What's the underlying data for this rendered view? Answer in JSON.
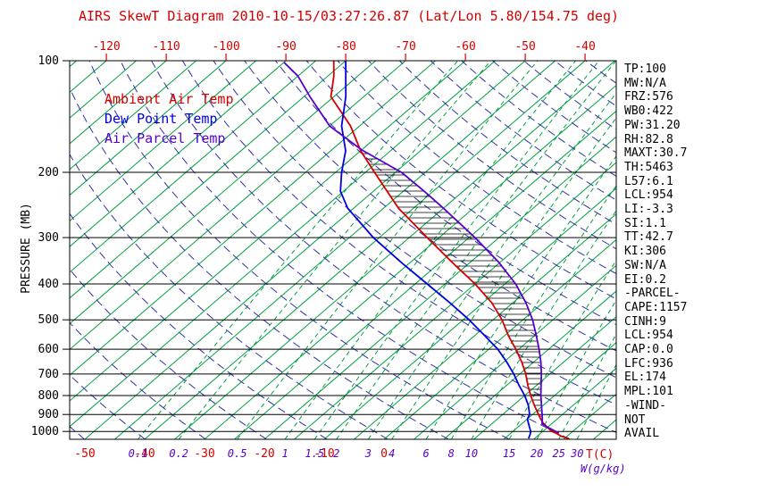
{
  "title": "AIRS SkewT Diagram 2010-10-15/03:27:26.87 (Lat/Lon 5.80/154.75 deg)",
  "legend": {
    "ambient": "Ambient Air Temp",
    "dew": "Dew Point Temp",
    "parcel": "Air Parcel Temp"
  },
  "axes": {
    "pressure_label": "PRESSURE (MB)",
    "pressure_ticks": [
      "100",
      "200",
      "300",
      "400",
      "500",
      "600",
      "700",
      "800",
      "900",
      "1000"
    ],
    "top_temp_ticks": [
      -120,
      -110,
      -100,
      -90,
      -80,
      -70,
      -60,
      -50,
      -40
    ],
    "bottom_temp_ticks": [
      -50,
      -40,
      -30,
      -20,
      -10,
      0
    ],
    "mixing_ratio_labels": [
      0.1,
      0.2,
      0.5,
      1,
      1.5,
      2,
      3,
      4,
      6,
      8,
      10,
      15,
      20,
      25,
      30
    ],
    "temp_unit": "T(C)",
    "mixing_unit": "W(g/kg)"
  },
  "stats_panel": {
    "lines": [
      "TP:100",
      "MW:N/A",
      "FRZ:576",
      "WB0:422",
      "PW:31.20",
      "RH:82.8",
      "MAXT:30.7",
      "TH:5463",
      "L57:6.1",
      "LCL:954",
      "LI:-3.3",
      "SI:1.1",
      "TT:42.7",
      "KI:306",
      "SW:N/A",
      "EI:0.2",
      "-PARCEL-",
      "CAPE:1157",
      "CINH:9",
      "LCL:954",
      "CAP:0.0",
      "LFC:936",
      "EL:174",
      "MPL:101",
      "-WIND-",
      "NOT",
      "AVAIL"
    ]
  },
  "colors": {
    "ambient": "#d40000",
    "dew": "#0000e0",
    "parcel": "#5500cc",
    "isotherm": "#00a040",
    "mixing": "#00a040",
    "adiabat": "#3030a8",
    "axis_text_red": "#d40000",
    "text_black": "#000000"
  },
  "chart_data": {
    "type": "line",
    "title": "AIRS SkewT Diagram 2010-10-15/03:27:26.87 (Lat/Lon 5.80/154.75 deg)",
    "x_axis_label": "T(C)",
    "y_axis_label": "PRESSURE (MB)",
    "y_scale": "log",
    "y_range_mb": [
      100,
      1050
    ],
    "x_top_range_c": [
      -120,
      -40
    ],
    "skew": "45deg isotherms",
    "grid": "skew-t lattice",
    "legend_position": "upper-left-inside",
    "background": {
      "isotherms_c": {
        "from": -160,
        "to": 45,
        "step": 5
      },
      "dry_adiabats_k": {
        "from": 220,
        "to": 450,
        "step": 10
      },
      "mixing_ratio_g_kg": [
        0.1,
        0.2,
        0.5,
        1,
        1.5,
        2,
        3,
        4,
        6,
        8,
        10,
        15,
        20,
        25,
        30
      ]
    },
    "series": [
      {
        "name": "Ambient Air Temp",
        "color": "#d40000",
        "points_p_t": [
          [
            1045,
            30.7
          ],
          [
            1030,
            29
          ],
          [
            1010,
            27.5
          ],
          [
            1000,
            26.5
          ],
          [
            975,
            25
          ],
          [
            950,
            23.5
          ],
          [
            925,
            22.2
          ],
          [
            900,
            21
          ],
          [
            850,
            18.5
          ],
          [
            800,
            16
          ],
          [
            750,
            13.5
          ],
          [
            700,
            11
          ],
          [
            650,
            8
          ],
          [
            600,
            4.5
          ],
          [
            550,
            0.5
          ],
          [
            500,
            -3.5
          ],
          [
            450,
            -8.5
          ],
          [
            400,
            -15
          ],
          [
            350,
            -23
          ],
          [
            300,
            -32
          ],
          [
            250,
            -42.5
          ],
          [
            200,
            -53.5
          ],
          [
            175,
            -60
          ],
          [
            150,
            -66.5
          ],
          [
            125,
            -75.5
          ],
          [
            110,
            -79
          ],
          [
            100,
            -82
          ]
        ]
      },
      {
        "name": "Dew Point Temp",
        "color": "#0000e0",
        "points_p_t": [
          [
            1045,
            24
          ],
          [
            1020,
            23.5
          ],
          [
            1000,
            23
          ],
          [
            975,
            22
          ],
          [
            950,
            21
          ],
          [
            925,
            20
          ],
          [
            900,
            19.5
          ],
          [
            850,
            17.5
          ],
          [
            800,
            15
          ],
          [
            750,
            12
          ],
          [
            700,
            9
          ],
          [
            650,
            5.5
          ],
          [
            600,
            1.5
          ],
          [
            550,
            -3.5
          ],
          [
            500,
            -9
          ],
          [
            450,
            -15.5
          ],
          [
            400,
            -23
          ],
          [
            350,
            -31.5
          ],
          [
            300,
            -41
          ],
          [
            250,
            -51
          ],
          [
            225,
            -55.5
          ],
          [
            200,
            -59
          ],
          [
            175,
            -62.5
          ],
          [
            150,
            -68
          ],
          [
            125,
            -73
          ],
          [
            100,
            -80
          ]
        ]
      },
      {
        "name": "Air Parcel Temp",
        "color": "#5500cc",
        "points_p_t": [
          [
            1010,
            28
          ],
          [
            980,
            25.5
          ],
          [
            954,
            23.4
          ],
          [
            925,
            22.5
          ],
          [
            900,
            21.6
          ],
          [
            850,
            19.7
          ],
          [
            800,
            17.7
          ],
          [
            750,
            15.7
          ],
          [
            700,
            13.6
          ],
          [
            650,
            11.2
          ],
          [
            600,
            8.4
          ],
          [
            550,
            5.2
          ],
          [
            500,
            1.6
          ],
          [
            450,
            -2.8
          ],
          [
            400,
            -8.2
          ],
          [
            350,
            -15.2
          ],
          [
            300,
            -24
          ],
          [
            250,
            -35
          ],
          [
            225,
            -41.5
          ],
          [
            200,
            -49
          ],
          [
            174,
            -60
          ],
          [
            150,
            -70
          ],
          [
            125,
            -79
          ],
          [
            110,
            -85
          ],
          [
            101,
            -90
          ]
        ]
      }
    ],
    "hatch_between": {
      "series_a": "Ambient Air Temp",
      "series_b": "Air Parcel Temp",
      "p_from": 1010,
      "p_to": 178
    }
  }
}
